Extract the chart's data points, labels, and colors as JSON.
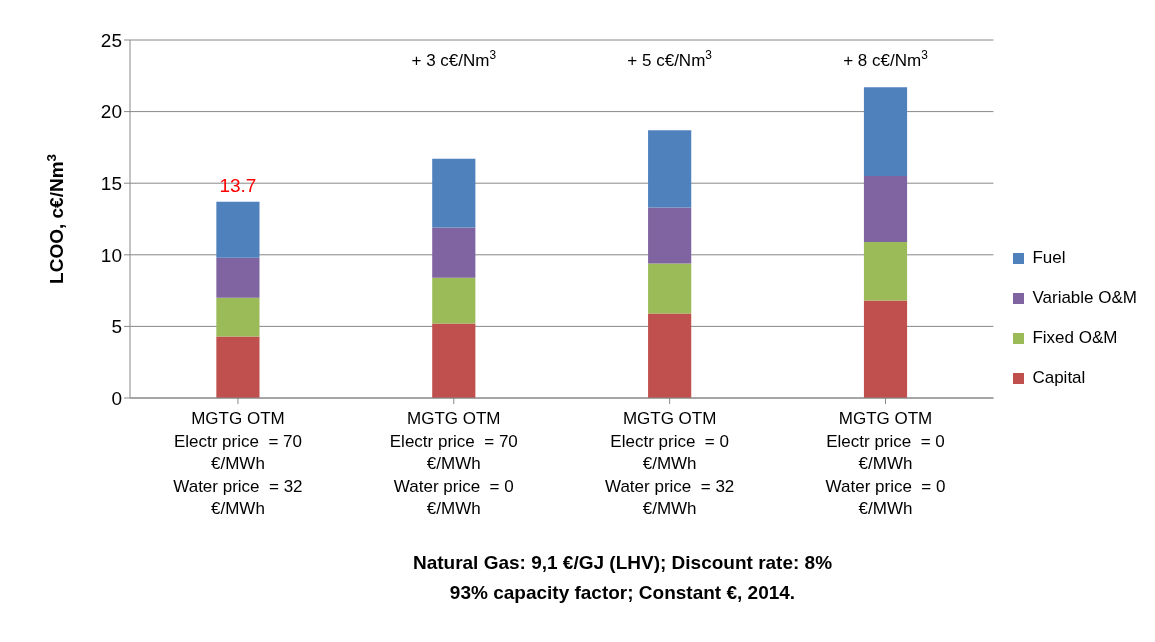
{
  "chart_data": {
    "type": "bar",
    "stacked": true,
    "ylabel": "LCOO, c€/Nm$^{3}$",
    "categories": [
      "MGTG OTM\nElectr price  = 70\n€/MWh\nWater price  = 32\n€/MWh",
      "MGTG OTM\nElectr price  = 70\n€/MWh\nWater price  = 0\n€/MWh",
      "MGTG OTM\nElectr price  = 0\n€/MWh\nWater price  = 32\n€/MWh",
      "MGTG OTM\nElectr price  = 0\n€/MWh\nWater price  = 0\n€/MWh"
    ],
    "series": [
      {
        "name": "Capital",
        "color": "#c0504d",
        "values": [
          4.3,
          5.2,
          5.9,
          6.8
        ]
      },
      {
        "name": "Fixed O&M",
        "color": "#9bbb59",
        "values": [
          2.7,
          3.2,
          3.5,
          4.1
        ]
      },
      {
        "name": "Variable O&M",
        "color": "#8064a2",
        "values": [
          2.8,
          3.5,
          3.9,
          4.6
        ]
      },
      {
        "name": "Fuel",
        "color": "#4f81bd",
        "values": [
          3.9,
          4.8,
          5.4,
          6.2
        ]
      }
    ],
    "totals": [
      "13.7",
      null,
      null,
      null
    ],
    "annotations": [
      "+ 3 c€/Nm$^{3}$",
      "+ 5 c€/Nm$^{3}$",
      "+ 8 c€/Nm$^{3}$",
      "Natural Gas: 9,1 €/GJ (LHV); Discount rate: 8%",
      "93% capacity factor; Constant €, 2014."
    ],
    "ylim": [
      0,
      25
    ],
    "yticks": [
      0,
      5,
      10,
      15,
      20,
      25
    ],
    "grid": "y",
    "legend": "right"
  }
}
